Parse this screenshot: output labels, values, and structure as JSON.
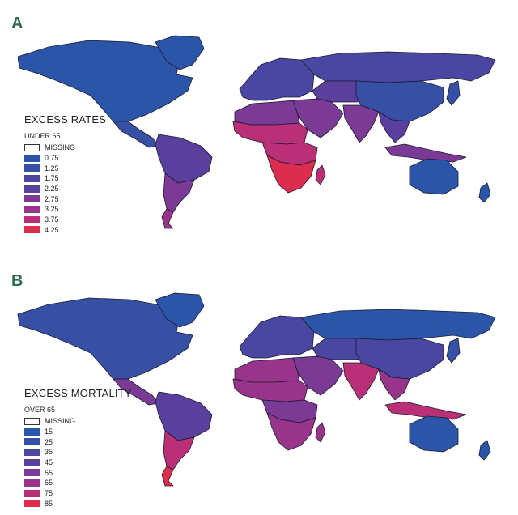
{
  "panels": [
    {
      "letter": "A",
      "legend_title": "EXCESS RATES",
      "legend_subtitle": "UNDER 65",
      "missing_label": "MISSING",
      "legend": [
        {
          "label": "0.75",
          "color": "#2a55a8"
        },
        {
          "label": "1.25",
          "color": "#3650a5"
        },
        {
          "label": "1.75",
          "color": "#4a47a2"
        },
        {
          "label": "2.25",
          "color": "#5b3f9d"
        },
        {
          "label": "2.75",
          "color": "#7a3a96"
        },
        {
          "label": "3.25",
          "color": "#99348b"
        },
        {
          "label": "3.75",
          "color": "#b93077"
        },
        {
          "label": "4.25",
          "color": "#de2c4f"
        }
      ],
      "regions": {
        "north_america": "#2a55a8",
        "greenland": "#2a55a8",
        "central_america": "#3650a5",
        "south_america_north": "#5b3f9d",
        "south_america_south": "#7a3a96",
        "patagonia": "#99348b",
        "europe": "#4a47a2",
        "russia": "#4a47a2",
        "central_asia": "#5b3f9d",
        "middle_east": "#7a3a96",
        "north_africa": "#7a3a96",
        "sahel": "#b93077",
        "central_africa": "#b93077",
        "southern_africa": "#de2c4f",
        "madagascar": "#b93077",
        "india": "#7a3a96",
        "china": "#3650a5",
        "southeast_asia": "#5b3f9d",
        "indonesia": "#7a3a96",
        "japan": "#3650a5",
        "australia": "#2a55a8",
        "new_zealand": "#2a55a8"
      }
    },
    {
      "letter": "B",
      "legend_title": "EXCESS MORTALITY",
      "legend_subtitle": "OVER 65",
      "missing_label": "MISSING",
      "legend": [
        {
          "label": "15",
          "color": "#2a55a8"
        },
        {
          "label": "25",
          "color": "#3650a5"
        },
        {
          "label": "35",
          "color": "#4a47a2"
        },
        {
          "label": "45",
          "color": "#5b3f9d"
        },
        {
          "label": "55",
          "color": "#7a3a96"
        },
        {
          "label": "65",
          "color": "#99348b"
        },
        {
          "label": "75",
          "color": "#b93077"
        },
        {
          "label": "85",
          "color": "#de2c4f"
        }
      ],
      "regions": {
        "north_america": "#3650a5",
        "greenland": "#2a55a8",
        "central_america": "#7a3a96",
        "south_america_north": "#5b3f9d",
        "south_america_south": "#b93077",
        "patagonia": "#de2c4f",
        "europe": "#4a47a2",
        "russia": "#2a55a8",
        "central_asia": "#4a47a2",
        "middle_east": "#7a3a96",
        "north_africa": "#99348b",
        "sahel": "#99348b",
        "central_africa": "#7a3a96",
        "southern_africa": "#99348b",
        "madagascar": "#99348b",
        "india": "#b93077",
        "china": "#4a47a2",
        "southeast_asia": "#99348b",
        "indonesia": "#b93077",
        "japan": "#3650a5",
        "australia": "#2a55a8",
        "new_zealand": "#2a55a8"
      }
    }
  ]
}
